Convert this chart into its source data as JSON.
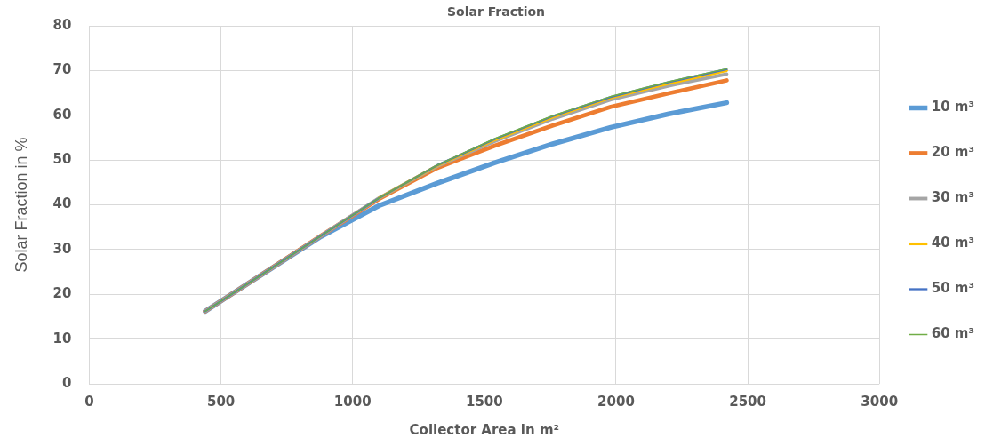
{
  "chart_data": {
    "type": "line",
    "title": "Solar Fraction",
    "xlabel": "Collector Area in m²",
    "ylabel": "Solar Fraction in %",
    "x": [
      440,
      660,
      880,
      1100,
      1320,
      1540,
      1760,
      1980,
      2200,
      2420
    ],
    "series": [
      {
        "name": "10 m³",
        "color": "#5b9bd5",
        "values": [
          16.2,
          24.6,
          32.9,
          39.8,
          44.8,
          49.4,
          53.6,
          57.3,
          60.3,
          62.8
        ]
      },
      {
        "name": "20 m³",
        "color": "#ed7d31",
        "values": [
          16.2,
          24.6,
          33.1,
          41.3,
          48.2,
          53.2,
          57.7,
          61.9,
          64.9,
          67.8
        ]
      },
      {
        "name": "30 m³",
        "color": "#a5a5a5",
        "values": [
          16.2,
          24.6,
          33.1,
          41.5,
          48.6,
          54.2,
          59.2,
          63.5,
          66.6,
          69.2
        ]
      },
      {
        "name": "40 m³",
        "color": "#ffc000",
        "values": [
          null,
          null,
          null,
          41.5,
          48.7,
          54.5,
          59.6,
          63.9,
          67.1,
          70.0
        ]
      },
      {
        "name": "50 m³",
        "color": "#4472c4",
        "values": [
          16.2,
          24.6,
          33.1,
          41.5,
          48.8,
          54.7,
          59.8,
          64.1,
          67.4,
          70.3
        ]
      },
      {
        "name": "60 m³",
        "color": "#70ad47",
        "values": [
          16.2,
          24.6,
          33.1,
          41.5,
          48.8,
          54.8,
          59.9,
          64.2,
          67.5,
          70.4
        ]
      }
    ],
    "xlim": [
      0,
      3000
    ],
    "xticks": [
      0,
      500,
      1000,
      1500,
      2000,
      2500,
      3000
    ],
    "ylim": [
      0,
      80
    ],
    "yticks": [
      0,
      10,
      20,
      30,
      40,
      50,
      60,
      70,
      80
    ],
    "grid": true,
    "legend": "right",
    "marker": "none",
    "line_style": "solid"
  }
}
